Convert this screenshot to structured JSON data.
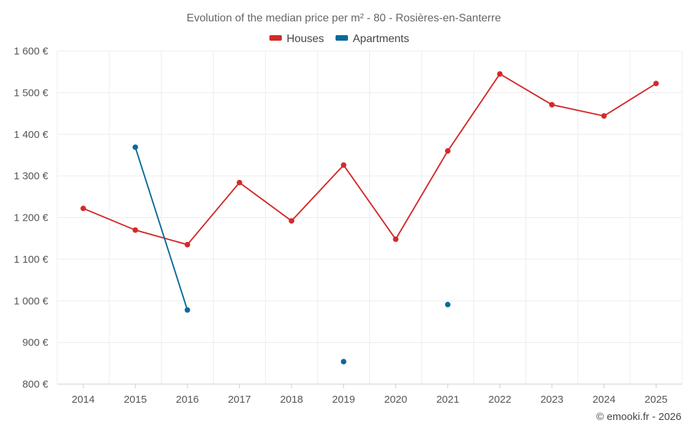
{
  "chart_data": {
    "type": "line",
    "title": "Evolution of the median price per m² - 80 - Rosières-en-Santerre",
    "categories": [
      "2014",
      "2015",
      "2016",
      "2017",
      "2018",
      "2019",
      "2020",
      "2021",
      "2022",
      "2023",
      "2024",
      "2025"
    ],
    "series": [
      {
        "name": "Houses",
        "color": "#d32a2a",
        "values": [
          1222,
          1170,
          1135,
          1284,
          1192,
          1326,
          1148,
          1360,
          1545,
          1471,
          1444,
          1522
        ]
      },
      {
        "name": "Apartments",
        "color": "#0a6a9a",
        "values": [
          null,
          1369,
          978,
          null,
          null,
          854,
          null,
          991,
          null,
          null,
          null,
          null
        ]
      }
    ],
    "ylim": [
      800,
      1600
    ],
    "yticks": [
      800,
      900,
      1000,
      1100,
      1200,
      1300,
      1400,
      1500,
      1600
    ],
    "ytick_labels": [
      "800 €",
      "900 €",
      "1 000 €",
      "1 100 €",
      "1 200 €",
      "1 300 €",
      "1 400 €",
      "1 500 €",
      "1 600 €"
    ],
    "legend_position": "top-center",
    "grid": true
  },
  "credit": "© emooki.fr - 2026"
}
